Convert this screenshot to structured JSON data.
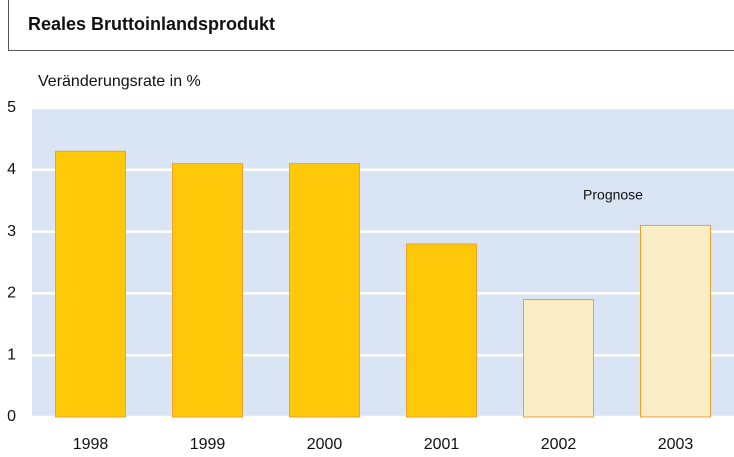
{
  "chart_data": {
    "type": "bar",
    "title": "Reales Bruttoinlandsprodukt",
    "ylabel": "Veränderungsrate in %",
    "annotation": "Prognose",
    "categories": [
      "1998",
      "1999",
      "2000",
      "2001",
      "2002",
      "2003"
    ],
    "values": [
      4.3,
      4.1,
      4.1,
      2.8,
      1.9,
      3.1
    ],
    "colors": [
      "#ffc90a",
      "#ffc90a",
      "#ffc90a",
      "#ffc90a",
      "#faecc4",
      "#faecc4"
    ],
    "edgecolor": "#f0a030",
    "background": "#d9e4f5",
    "ylim": [
      0,
      5
    ],
    "yticks": [
      0,
      1,
      2,
      3,
      4,
      5
    ],
    "grid": true
  }
}
